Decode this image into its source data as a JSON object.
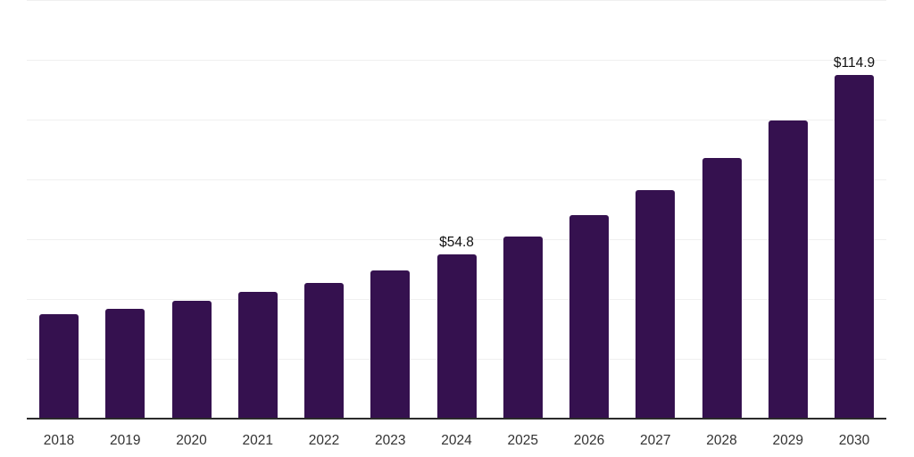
{
  "chart_data": {
    "type": "bar",
    "title": "",
    "xlabel": "",
    "ylabel": "",
    "categories": [
      "2018",
      "2019",
      "2020",
      "2021",
      "2022",
      "2023",
      "2024",
      "2025",
      "2026",
      "2027",
      "2028",
      "2029",
      "2030"
    ],
    "values": [
      34.9,
      36.7,
      39.3,
      42.3,
      45.5,
      49.5,
      54.8,
      61.0,
      68.2,
      76.4,
      87.1,
      99.7,
      114.9
    ],
    "data_labels": [
      {
        "category": "2024",
        "text": "$54.8"
      },
      {
        "category": "2030",
        "text": "$114.9"
      }
    ],
    "ylim": [
      0,
      140
    ],
    "grid_interval": 20,
    "grid": "horizontal",
    "y_axis_labels_visible": false,
    "legend": "none",
    "colors": {
      "bar": "#35114F",
      "gridline": "#F0F0F0",
      "axis_line": "#2B2B2B",
      "tick_label": "#333333",
      "data_label": "#111111",
      "background": "#FFFFFF"
    }
  }
}
